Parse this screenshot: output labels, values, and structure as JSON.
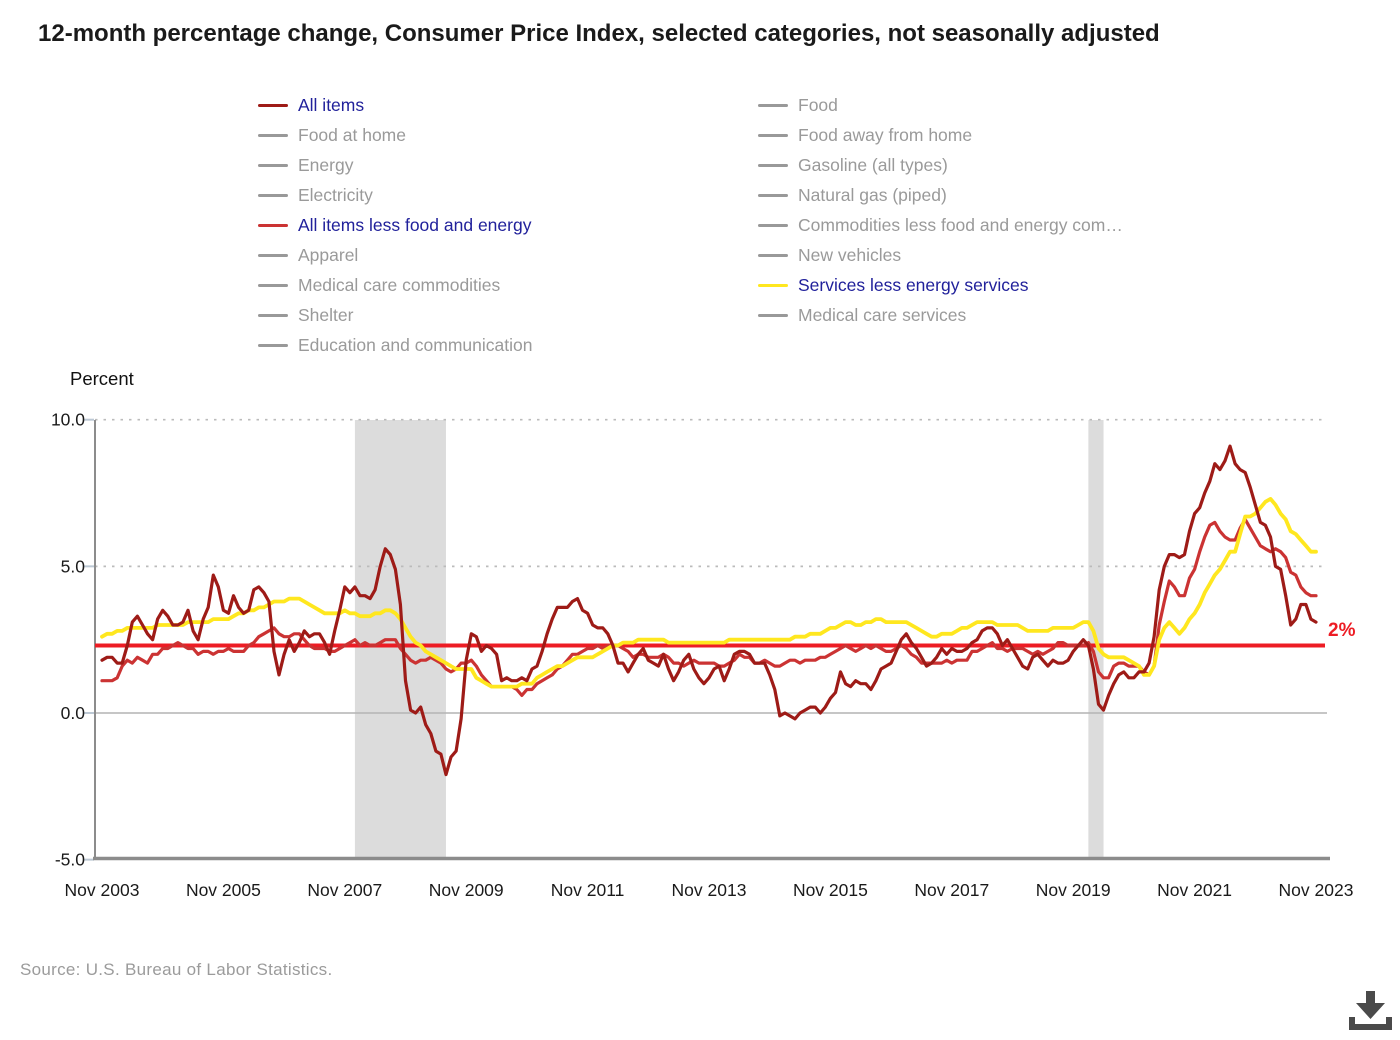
{
  "title": "12-month percentage change, Consumer Price Index, selected categories, not seasonally adjusted",
  "ylabel": "Percent",
  "source": "Source: U.S. Bureau of Labor Statistics.",
  "colors": {
    "all_items": "#9e1b17",
    "core": "#cb3333",
    "services": "#ffe71f",
    "ref_line": "#ed1c24",
    "inactive_swatch": "#999999",
    "active_text": "#21219b",
    "inactive_text": "#9a9a9a",
    "recession_band": "#dcdcdc",
    "grid": "#bbbbbb",
    "zero_line": "#b3b3b3",
    "axis": "#8c8c8c",
    "tick": "#bcc8d4",
    "icon": "#4a4a4a"
  },
  "legend": {
    "left": [
      {
        "label": "All items",
        "color": "#9e1b17",
        "active": true
      },
      {
        "label": "Food at home",
        "color": "#999999",
        "active": false
      },
      {
        "label": "Energy",
        "color": "#999999",
        "active": false
      },
      {
        "label": "Electricity",
        "color": "#999999",
        "active": false
      },
      {
        "label": "All items less food and energy",
        "color": "#cb3333",
        "active": true
      },
      {
        "label": "Apparel",
        "color": "#999999",
        "active": false
      },
      {
        "label": "Medical care commodities",
        "color": "#999999",
        "active": false
      },
      {
        "label": "Shelter",
        "color": "#999999",
        "active": false
      },
      {
        "label": "Education and communication",
        "color": "#999999",
        "active": false
      }
    ],
    "right": [
      {
        "label": "Food",
        "color": "#999999",
        "active": false
      },
      {
        "label": "Food away from home",
        "color": "#999999",
        "active": false
      },
      {
        "label": "Gasoline (all types)",
        "color": "#999999",
        "active": false
      },
      {
        "label": "Natural gas (piped)",
        "color": "#999999",
        "active": false
      },
      {
        "label": "Commodities less food and energy com…",
        "color": "#999999",
        "active": false
      },
      {
        "label": "New vehicles",
        "color": "#999999",
        "active": false
      },
      {
        "label": "Services less energy services",
        "color": "#ffe71f",
        "active": true
      },
      {
        "label": "Medical care services",
        "color": "#999999",
        "active": false
      }
    ]
  },
  "chart_data": {
    "type": "line",
    "x_monthly_from": "Nov 2003",
    "x_monthly_to": "Nov 2023",
    "xticks": [
      "Nov 2003",
      "Nov 2005",
      "Nov 2007",
      "Nov 2009",
      "Nov 2011",
      "Nov 2013",
      "Nov 2015",
      "Nov 2017",
      "Nov 2019",
      "Nov 2021",
      "Nov 2023"
    ],
    "yticks": [
      {
        "value": 10,
        "label": "10.0"
      },
      {
        "value": 5,
        "label": "5.0"
      },
      {
        "value": 0,
        "label": "0.0"
      },
      {
        "value": -5,
        "label": "-5.0"
      }
    ],
    "ylim": [
      -5,
      10
    ],
    "grid": "dotted-horizontal",
    "legend_position": "top",
    "ref_line": {
      "value": 2.3,
      "label": "2%"
    },
    "recession_bands": [
      {
        "start_month_index": 50,
        "end_month_index": 68
      },
      {
        "start_month_index": 195,
        "end_month_index": 198
      }
    ],
    "series": [
      {
        "name": "All items",
        "color": "#9e1b17",
        "width": 3.2,
        "values": [
          1.8,
          1.9,
          1.9,
          1.7,
          1.7,
          2.3,
          3.1,
          3.3,
          3.0,
          2.7,
          2.5,
          3.2,
          3.5,
          3.3,
          3.0,
          3.0,
          3.1,
          3.5,
          2.8,
          2.5,
          3.2,
          3.6,
          4.7,
          4.3,
          3.5,
          3.4,
          4.0,
          3.6,
          3.4,
          3.5,
          4.2,
          4.3,
          4.1,
          3.8,
          2.1,
          1.3,
          2.0,
          2.5,
          2.1,
          2.4,
          2.8,
          2.6,
          2.7,
          2.7,
          2.4,
          2.0,
          2.8,
          3.5,
          4.3,
          4.1,
          4.3,
          4.0,
          4.0,
          3.9,
          4.2,
          5.0,
          5.6,
          5.4,
          4.9,
          3.7,
          1.1,
          0.1,
          0.0,
          0.2,
          -0.4,
          -0.7,
          -1.3,
          -1.4,
          -2.1,
          -1.5,
          -1.3,
          -0.2,
          1.8,
          2.7,
          2.6,
          2.1,
          2.3,
          2.2,
          2.0,
          1.1,
          1.2,
          1.1,
          1.1,
          1.2,
          1.1,
          1.5,
          1.6,
          2.1,
          2.7,
          3.2,
          3.6,
          3.6,
          3.6,
          3.8,
          3.9,
          3.5,
          3.4,
          3.0,
          2.9,
          2.9,
          2.7,
          2.3,
          1.7,
          1.7,
          1.4,
          1.7,
          2.0,
          2.2,
          1.8,
          1.7,
          1.6,
          2.0,
          1.5,
          1.1,
          1.4,
          1.8,
          2.0,
          1.5,
          1.2,
          1.0,
          1.2,
          1.5,
          1.6,
          1.1,
          1.5,
          2.0,
          2.1,
          2.1,
          2.0,
          1.7,
          1.7,
          1.7,
          1.3,
          0.8,
          -0.1,
          0.0,
          -0.1,
          -0.2,
          0.0,
          0.1,
          0.2,
          0.2,
          0.0,
          0.2,
          0.5,
          0.7,
          1.4,
          1.0,
          0.9,
          1.1,
          1.0,
          1.0,
          0.8,
          1.1,
          1.5,
          1.6,
          1.7,
          2.1,
          2.5,
          2.7,
          2.4,
          2.2,
          1.9,
          1.6,
          1.7,
          1.9,
          2.2,
          2.0,
          2.2,
          2.1,
          2.1,
          2.2,
          2.4,
          2.5,
          2.8,
          2.9,
          2.9,
          2.7,
          2.3,
          2.5,
          2.2,
          1.9,
          1.6,
          1.5,
          1.9,
          2.0,
          1.8,
          1.6,
          1.8,
          1.7,
          1.7,
          1.8,
          2.1,
          2.3,
          2.5,
          2.3,
          1.5,
          0.3,
          0.1,
          0.6,
          1.0,
          1.3,
          1.4,
          1.2,
          1.2,
          1.4,
          1.4,
          1.7,
          2.6,
          4.2,
          5.0,
          5.4,
          5.4,
          5.3,
          5.4,
          6.2,
          6.8,
          7.0,
          7.5,
          7.9,
          8.5,
          8.3,
          8.6,
          9.1,
          8.5,
          8.3,
          8.2,
          7.7,
          7.1,
          6.5,
          6.4,
          6.0,
          5.0,
          4.9,
          4.0,
          3.0,
          3.2,
          3.7,
          3.7,
          3.2,
          3.1
        ]
      },
      {
        "name": "All items less food and energy",
        "color": "#cb3333",
        "width": 3.2,
        "values": [
          1.1,
          1.1,
          1.1,
          1.2,
          1.6,
          1.8,
          1.7,
          1.9,
          1.8,
          1.7,
          2.0,
          2.0,
          2.2,
          2.2,
          2.3,
          2.4,
          2.3,
          2.2,
          2.2,
          2.0,
          2.1,
          2.1,
          2.0,
          2.1,
          2.1,
          2.2,
          2.1,
          2.1,
          2.1,
          2.3,
          2.4,
          2.6,
          2.7,
          2.8,
          2.9,
          2.7,
          2.6,
          2.6,
          2.7,
          2.7,
          2.5,
          2.3,
          2.2,
          2.2,
          2.2,
          2.1,
          2.1,
          2.2,
          2.3,
          2.4,
          2.5,
          2.3,
          2.4,
          2.3,
          2.3,
          2.4,
          2.5,
          2.5,
          2.5,
          2.2,
          2.0,
          1.8,
          1.7,
          1.8,
          1.8,
          1.9,
          1.8,
          1.7,
          1.5,
          1.4,
          1.5,
          1.7,
          1.7,
          1.8,
          1.6,
          1.3,
          1.1,
          0.9,
          0.9,
          0.9,
          0.9,
          0.9,
          0.8,
          0.6,
          0.8,
          0.8,
          1.0,
          1.1,
          1.2,
          1.3,
          1.5,
          1.6,
          1.8,
          2.0,
          2.0,
          2.1,
          2.2,
          2.2,
          2.3,
          2.2,
          2.3,
          2.3,
          2.3,
          2.2,
          2.1,
          1.9,
          2.0,
          2.0,
          1.9,
          1.9,
          1.9,
          2.0,
          1.9,
          1.7,
          1.7,
          1.6,
          1.7,
          1.8,
          1.7,
          1.7,
          1.7,
          1.7,
          1.6,
          1.6,
          1.7,
          1.8,
          2.0,
          1.9,
          1.9,
          1.7,
          1.7,
          1.8,
          1.7,
          1.6,
          1.6,
          1.7,
          1.8,
          1.8,
          1.7,
          1.8,
          1.8,
          1.8,
          1.9,
          1.9,
          2.0,
          2.1,
          2.2,
          2.3,
          2.2,
          2.1,
          2.2,
          2.3,
          2.2,
          2.3,
          2.2,
          2.1,
          2.1,
          2.2,
          2.3,
          2.2,
          2.0,
          1.9,
          1.7,
          1.7,
          1.7,
          1.7,
          1.7,
          1.8,
          1.7,
          1.8,
          1.8,
          1.8,
          2.1,
          2.1,
          2.2,
          2.3,
          2.4,
          2.2,
          2.2,
          2.1,
          2.2,
          2.2,
          2.2,
          2.1,
          2.0,
          2.1,
          2.0,
          2.1,
          2.2,
          2.4,
          2.4,
          2.3,
          2.3,
          2.3,
          2.3,
          2.4,
          2.1,
          1.4,
          1.2,
          1.2,
          1.6,
          1.7,
          1.7,
          1.6,
          1.6,
          1.6,
          1.4,
          1.3,
          1.6,
          3.0,
          3.8,
          4.5,
          4.3,
          4.0,
          4.0,
          4.6,
          4.9,
          5.5,
          6.0,
          6.4,
          6.5,
          6.2,
          6.0,
          5.9,
          5.9,
          6.3,
          6.6,
          6.3,
          6.0,
          5.7,
          5.6,
          5.5,
          5.6,
          5.5,
          5.3,
          4.8,
          4.7,
          4.3,
          4.1,
          4.0,
          4.0
        ]
      },
      {
        "name": "Services less energy services",
        "color": "#ffe71f",
        "width": 3.8,
        "values": [
          2.6,
          2.7,
          2.7,
          2.8,
          2.8,
          2.9,
          2.9,
          2.9,
          2.9,
          2.9,
          2.9,
          3.0,
          3.0,
          3.0,
          3.0,
          3.0,
          3.0,
          3.1,
          3.1,
          3.1,
          3.1,
          3.1,
          3.2,
          3.2,
          3.2,
          3.2,
          3.3,
          3.4,
          3.4,
          3.5,
          3.5,
          3.6,
          3.6,
          3.7,
          3.8,
          3.8,
          3.8,
          3.9,
          3.9,
          3.9,
          3.8,
          3.7,
          3.6,
          3.5,
          3.4,
          3.4,
          3.4,
          3.4,
          3.5,
          3.4,
          3.4,
          3.3,
          3.3,
          3.3,
          3.4,
          3.4,
          3.5,
          3.5,
          3.4,
          3.2,
          2.9,
          2.6,
          2.4,
          2.3,
          2.1,
          2.0,
          1.9,
          1.8,
          1.7,
          1.6,
          1.5,
          1.5,
          1.5,
          1.5,
          1.2,
          1.1,
          1.0,
          0.9,
          0.9,
          0.9,
          0.9,
          0.9,
          0.9,
          1.0,
          1.0,
          1.0,
          1.2,
          1.3,
          1.4,
          1.5,
          1.6,
          1.6,
          1.7,
          1.8,
          1.9,
          1.9,
          1.9,
          1.9,
          2.0,
          2.1,
          2.2,
          2.3,
          2.3,
          2.4,
          2.4,
          2.4,
          2.5,
          2.5,
          2.5,
          2.5,
          2.5,
          2.5,
          2.4,
          2.4,
          2.4,
          2.4,
          2.4,
          2.4,
          2.4,
          2.4,
          2.4,
          2.4,
          2.4,
          2.4,
          2.5,
          2.5,
          2.5,
          2.5,
          2.5,
          2.5,
          2.5,
          2.5,
          2.5,
          2.5,
          2.5,
          2.5,
          2.5,
          2.6,
          2.6,
          2.6,
          2.7,
          2.7,
          2.7,
          2.8,
          2.9,
          2.9,
          3.0,
          3.1,
          3.1,
          3.0,
          3.0,
          3.1,
          3.1,
          3.2,
          3.2,
          3.1,
          3.1,
          3.1,
          3.1,
          3.1,
          3.0,
          2.9,
          2.8,
          2.7,
          2.6,
          2.6,
          2.7,
          2.7,
          2.7,
          2.8,
          2.9,
          2.9,
          3.0,
          3.1,
          3.1,
          3.1,
          3.1,
          3.0,
          3.0,
          3.0,
          3.0,
          3.0,
          2.9,
          2.8,
          2.8,
          2.8,
          2.8,
          2.8,
          2.9,
          2.9,
          2.9,
          2.9,
          2.9,
          3.0,
          3.1,
          3.1,
          2.8,
          2.2,
          2.0,
          1.9,
          1.9,
          1.9,
          1.9,
          1.8,
          1.7,
          1.6,
          1.3,
          1.3,
          1.6,
          2.5,
          2.9,
          3.1,
          2.9,
          2.7,
          2.9,
          3.2,
          3.4,
          3.7,
          4.1,
          4.4,
          4.7,
          4.9,
          5.2,
          5.5,
          5.5,
          6.1,
          6.7,
          6.7,
          6.8,
          7.0,
          7.2,
          7.3,
          7.1,
          6.8,
          6.6,
          6.2,
          6.1,
          5.9,
          5.7,
          5.5,
          5.5
        ]
      }
    ]
  },
  "download_icon": "download-arrow-tray"
}
